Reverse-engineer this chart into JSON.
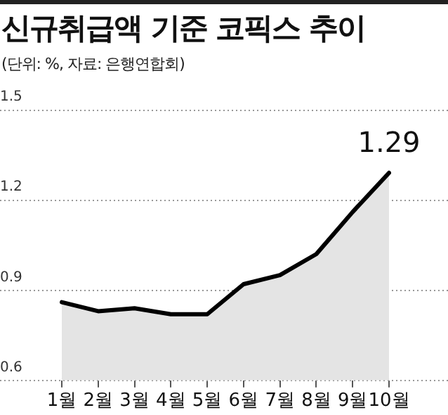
{
  "chart_data": {
    "type": "area",
    "title": "신규취급액 기준 코픽스 추이",
    "subtitle": "(단위: %, 자료: 은행연합회)",
    "categories": [
      "1월",
      "2월",
      "3월",
      "4월",
      "5월",
      "6월",
      "7월",
      "8월",
      "9월",
      "10월"
    ],
    "series": [
      {
        "color": "#000000",
        "values": [
          0.86,
          0.83,
          0.84,
          0.82,
          0.82,
          0.92,
          0.95,
          1.02,
          1.16,
          1.29
        ],
        "value_labels": [
          null,
          null,
          null,
          null,
          null,
          null,
          null,
          null,
          null,
          "1.29"
        ]
      }
    ],
    "ylim": [
      0.6,
      1.5
    ],
    "yticks": [
      0.6,
      0.9,
      1.2,
      1.5
    ],
    "grid": "y",
    "legend": false,
    "marker": "none",
    "line_style": "solid"
  }
}
